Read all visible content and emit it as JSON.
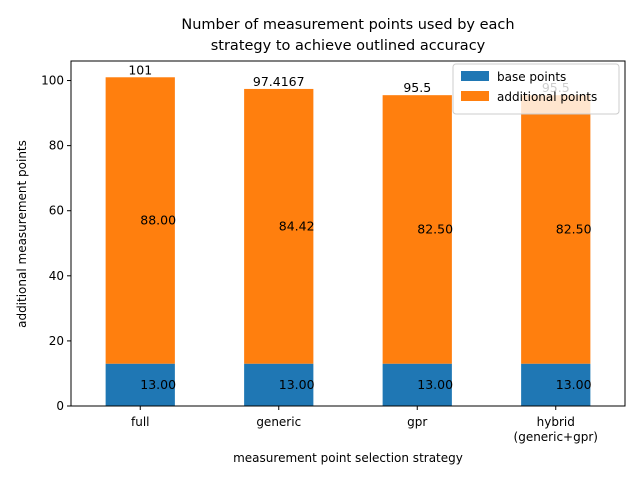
{
  "chart_data": {
    "type": "bar",
    "stacked": true,
    "title_lines": [
      "Number of measurement points used by each",
      "strategy to achieve outlined accuracy"
    ],
    "xlabel": "measurement point selection strategy",
    "ylabel": "additional measurement points",
    "categories": [
      [
        "full"
      ],
      [
        "generic"
      ],
      [
        "gpr"
      ],
      [
        "hybrid",
        "(generic+gpr)"
      ]
    ],
    "series": [
      {
        "name": "base points",
        "color": "#1f77b4",
        "values": [
          13.0,
          13.0,
          13.0,
          13.0
        ],
        "segment_labels": [
          "13.00",
          "13.00",
          "13.00",
          "13.00"
        ]
      },
      {
        "name": "additional points",
        "color": "#ff7f0e",
        "values": [
          88.0,
          84.4167,
          82.5,
          82.5
        ],
        "segment_labels": [
          "88.00",
          "84.42",
          "82.50",
          "82.50"
        ]
      }
    ],
    "total_labels": [
      "101",
      "97.4167",
      "95.5",
      "95.5"
    ],
    "ylim": [
      0,
      106
    ],
    "yticks": [
      0,
      20,
      40,
      60,
      80,
      100
    ],
    "legend": "top-right",
    "grid": false
  }
}
